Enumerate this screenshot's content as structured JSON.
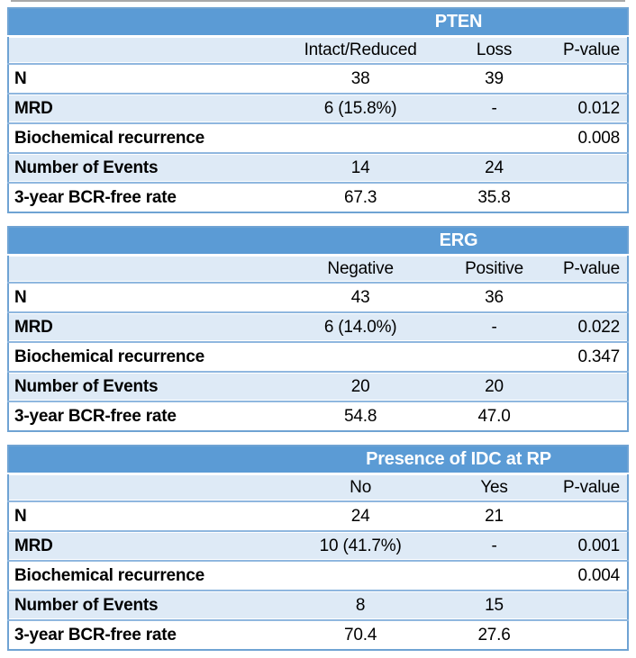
{
  "colors": {
    "header_bg": "#5B9BD5",
    "header_text": "#FFFFFF",
    "band_bg": "#DEEAF6",
    "row_bg": "#FFFFFF",
    "divider": "#8FB7DF",
    "outer_border": "#6FA3D3",
    "text": "#000000",
    "top_edge": "#8C8C8C"
  },
  "tables": [
    {
      "title": "PTEN",
      "columns": [
        "",
        "Intact/Reduced",
        "Loss",
        "P-value"
      ],
      "rows": [
        [
          "N",
          "38",
          "39",
          ""
        ],
        [
          "MRD",
          "6 (15.8%)",
          "-",
          "0.012"
        ],
        [
          "Biochemical recurrence",
          "",
          "",
          "0.008"
        ],
        [
          "Number of Events",
          "14",
          "24",
          ""
        ],
        [
          "3-year BCR-free rate",
          "67.3",
          "35.8",
          ""
        ]
      ]
    },
    {
      "title": "ERG",
      "columns": [
        "",
        "Negative",
        "Positive",
        "P-value"
      ],
      "rows": [
        [
          "N",
          "43",
          "36",
          ""
        ],
        [
          "MRD",
          "6 (14.0%)",
          "-",
          "0.022"
        ],
        [
          "Biochemical recurrence",
          "",
          "",
          "0.347"
        ],
        [
          "Number of Events",
          "20",
          "20",
          ""
        ],
        [
          "3-year BCR-free rate",
          "54.8",
          "47.0",
          ""
        ]
      ]
    },
    {
      "title": "Presence of IDC at RP",
      "columns": [
        "",
        "No",
        "Yes",
        "P-value"
      ],
      "rows": [
        [
          "N",
          "24",
          "21",
          ""
        ],
        [
          "MRD",
          "10 (41.7%)",
          "-",
          "0.001"
        ],
        [
          "Biochemical recurrence",
          "",
          "",
          "0.004"
        ],
        [
          "Number of Events",
          "8",
          "15",
          ""
        ],
        [
          "3-year BCR-free rate",
          "70.4",
          "27.6",
          ""
        ]
      ]
    }
  ],
  "chart_data": [
    {
      "type": "table",
      "title": "PTEN",
      "columns": [
        "",
        "Intact/Reduced",
        "Loss",
        "P-value"
      ],
      "rows": [
        [
          "N",
          "38",
          "39",
          ""
        ],
        [
          "MRD",
          "6 (15.8%)",
          "-",
          "0.012"
        ],
        [
          "Biochemical recurrence",
          "",
          "",
          "0.008"
        ],
        [
          "Number of Events",
          "14",
          "24",
          ""
        ],
        [
          "3-year BCR-free rate",
          "67.3",
          "35.8",
          ""
        ]
      ]
    },
    {
      "type": "table",
      "title": "ERG",
      "columns": [
        "",
        "Negative",
        "Positive",
        "P-value"
      ],
      "rows": [
        [
          "N",
          "43",
          "36",
          ""
        ],
        [
          "MRD",
          "6 (14.0%)",
          "-",
          "0.022"
        ],
        [
          "Biochemical recurrence",
          "",
          "",
          "0.347"
        ],
        [
          "Number of Events",
          "20",
          "20",
          ""
        ],
        [
          "3-year BCR-free rate",
          "54.8",
          "47.0",
          ""
        ]
      ]
    },
    {
      "type": "table",
      "title": "Presence of IDC at RP",
      "columns": [
        "",
        "No",
        "Yes",
        "P-value"
      ],
      "rows": [
        [
          "N",
          "24",
          "21",
          ""
        ],
        [
          "MRD",
          "10 (41.7%)",
          "-",
          "0.001"
        ],
        [
          "Biochemical recurrence",
          "",
          "",
          "0.004"
        ],
        [
          "Number of Events",
          "8",
          "15",
          ""
        ],
        [
          "3-year BCR-free rate",
          "70.4",
          "27.6",
          ""
        ]
      ]
    }
  ]
}
